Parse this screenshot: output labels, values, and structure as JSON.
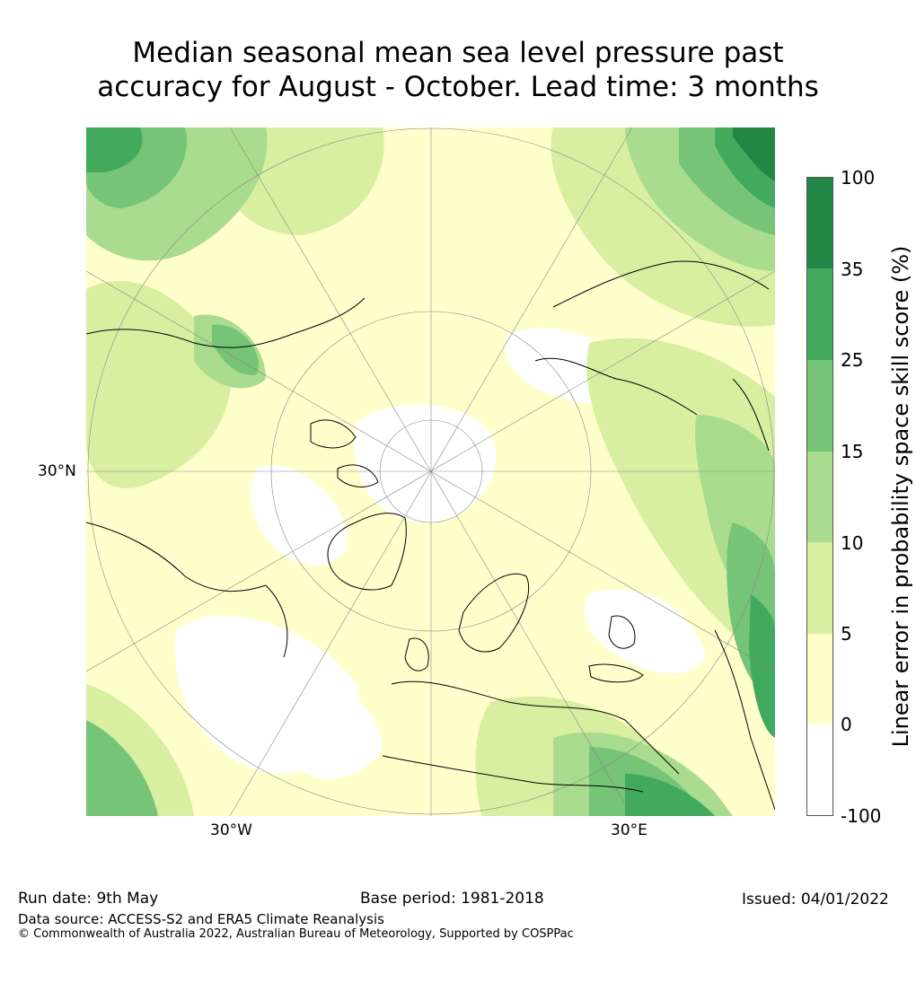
{
  "title_line1": "Median seasonal mean sea level pressure past",
  "title_line2": "accuracy for August - October. Lead time: 3 months",
  "map": {
    "lat_label": "30°N",
    "lon_labels": [
      "30°W",
      "30°E"
    ]
  },
  "colorbar": {
    "label": "Linear error in probability space skill score (%)",
    "ticks": [
      "100",
      "35",
      "25",
      "15",
      "10",
      "5",
      "0",
      "-100"
    ],
    "colors": [
      "#218646",
      "#41aa5d",
      "#76c477",
      "#a9dc8e",
      "#d8efa1",
      "#ffffcc",
      "#ffffff"
    ]
  },
  "footer": {
    "run_date": "Run date: 9th May",
    "base_period": "Base period: 1981-2018",
    "issued": "Issued: 04/01/2022",
    "data_source": "Data source: ACCESS-S2 and ERA5 Climate Reanalysis",
    "copyright": "© Commonwealth of Australia 2022, Australian Bureau of Meteorology, Supported by COSPPac"
  }
}
